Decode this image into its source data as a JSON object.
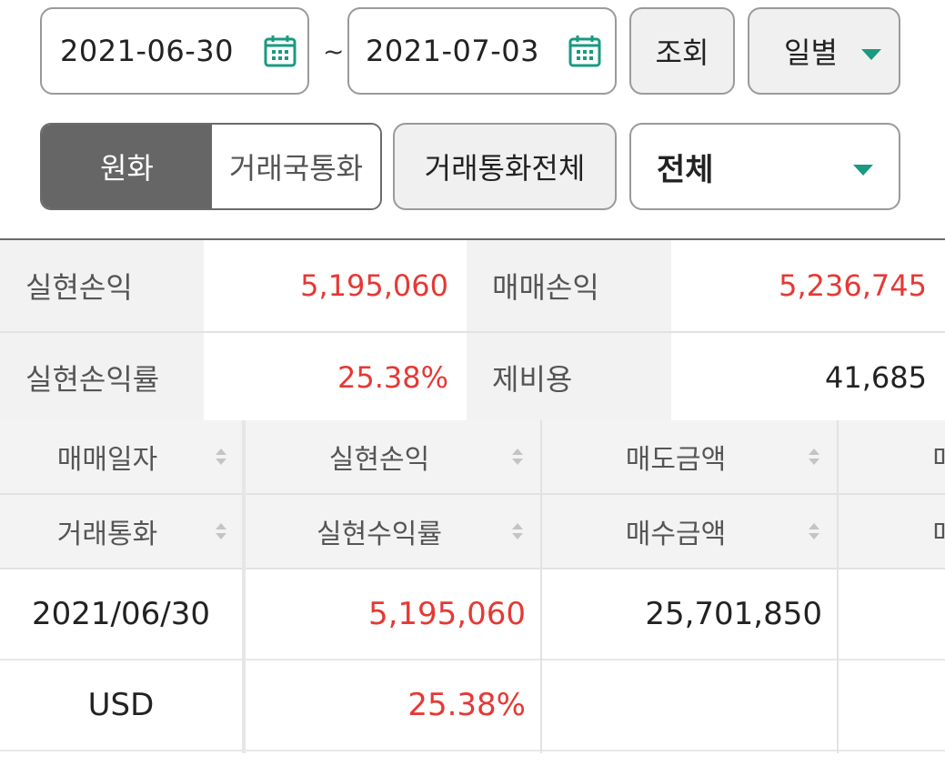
{
  "filters": {
    "start_date": "2021-06-30",
    "end_date": "2021-07-03",
    "range_separator": "~",
    "search_label": "조회",
    "period_label": "일별"
  },
  "currency_toggle": {
    "options": [
      "원화",
      "거래국통화"
    ],
    "selected": "원화"
  },
  "all_currency_button": "거래통화전체",
  "scope_select": {
    "value": "전체"
  },
  "summary": {
    "realized_pl_label": "실현손익",
    "realized_pl_value": "5,195,060",
    "trading_pl_label": "매매손익",
    "trading_pl_value": "5,236,745",
    "realized_rate_label": "실현손익률",
    "realized_rate_value": "25.38%",
    "expense_label": "제비용",
    "expense_value": "41,685"
  },
  "table": {
    "header_row1": [
      "매매일자",
      "실현손익",
      "매도금액",
      "매"
    ],
    "header_row2": [
      "거래통화",
      "실현수익률",
      "매수금액",
      "매"
    ],
    "rows": [
      {
        "col1": "2021/06/30",
        "col2": "5,195,060",
        "col3": "25,701,850"
      },
      {
        "col1": "USD",
        "col2": "25.38%",
        "col3": ""
      }
    ]
  },
  "colors": {
    "positive": "#e53935",
    "accent": "#1a9a80",
    "toggle_active": "#666666"
  },
  "icons": [
    "calendar-icon",
    "dropdown-caret-icon",
    "sort-icon"
  ]
}
